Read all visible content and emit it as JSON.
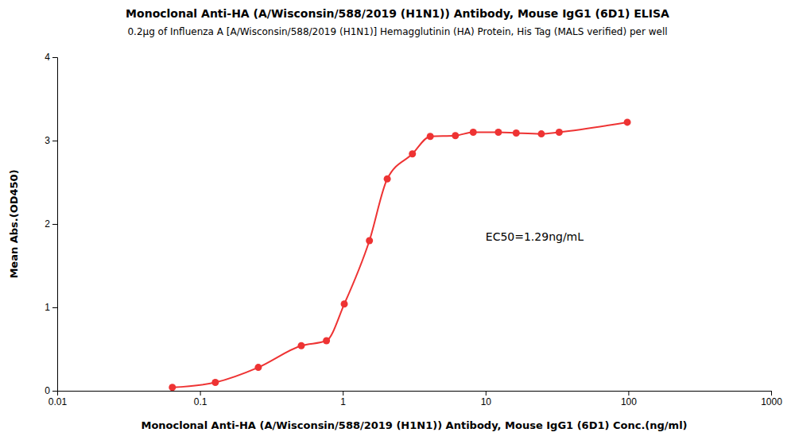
{
  "chart_data": {
    "type": "line",
    "title": "Monoclonal Anti-HA (A/Wisconsin/588/2019 (H1N1)) Antibody, Mouse IgG1 (6D1) ELISA",
    "subtitle": "0.2μg of Influenza A [A/Wisconsin/588/2019 (H1N1)] Hemagglutinin (HA) Protein, His Tag (MALS verified) per well",
    "x_label": "Monoclonal Anti-HA (A/Wisconsin/588/2019 (H1N1)) Antibody, Mouse IgG1 (6D1) Conc.(ng/ml)",
    "y_label": "Mean Abs.(OD450)",
    "annotation": "EC50=1.29ng/mL",
    "x": [
      0.064,
      0.128,
      0.256,
      0.512,
      0.768,
      1.024,
      1.536,
      2.048,
      3.072,
      4.096,
      6.144,
      8.192,
      12.288,
      16.384,
      24.576,
      32.768,
      98.304
    ],
    "values": [
      0.04,
      0.1,
      0.28,
      0.54,
      0.6,
      1.04,
      1.8,
      2.54,
      2.84,
      3.05,
      3.06,
      3.1,
      3.1,
      3.09,
      3.08,
      3.1,
      3.22
    ],
    "color": "#EE3333",
    "marker": "circle",
    "log": "x",
    "grid": false,
    "xlim": [
      0.01,
      1000
    ],
    "ylim": [
      0,
      4
    ],
    "xticks": [
      0.01,
      0.1,
      1,
      10,
      100,
      1000
    ],
    "yticks": [
      0,
      1,
      2,
      3,
      4
    ]
  }
}
